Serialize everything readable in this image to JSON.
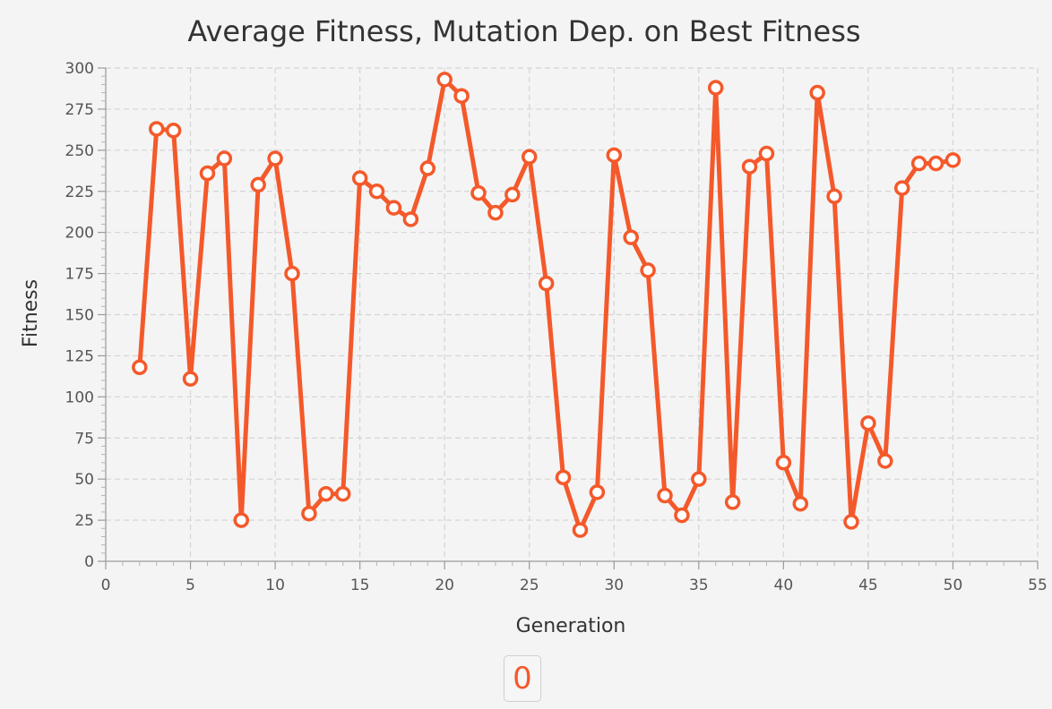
{
  "chart_data": {
    "type": "line",
    "title": "Average Fitness, Mutation Dep. on Best Fitness",
    "xlabel": "Generation",
    "ylabel": "Fitness",
    "xlim": [
      0,
      55
    ],
    "ylim": [
      0,
      300
    ],
    "x_major_ticks": [
      0,
      5,
      10,
      15,
      20,
      25,
      30,
      35,
      40,
      45,
      50,
      55
    ],
    "x_tick_labels": [
      "0",
      "5",
      "10",
      "15",
      "20",
      "25",
      "30",
      "35",
      "40",
      "45",
      "50",
      "55"
    ],
    "y_major_ticks": [
      0,
      25,
      50,
      75,
      100,
      125,
      150,
      175,
      200,
      225,
      250,
      275,
      300
    ],
    "y_tick_labels": [
      "0",
      "25",
      "50",
      "75",
      "100",
      "125",
      "150",
      "175",
      "200",
      "225",
      "250",
      "275",
      "300"
    ],
    "grid": true,
    "legend_position": "bottom-center",
    "series": [
      {
        "name": "0",
        "color": "#f4592b",
        "x": [
          2,
          3,
          4,
          5,
          6,
          7,
          8,
          9,
          10,
          11,
          12,
          13,
          14,
          15,
          16,
          17,
          18,
          19,
          20,
          21,
          22,
          23,
          24,
          25,
          26,
          27,
          28,
          29,
          30,
          31,
          32,
          33,
          34,
          35,
          36,
          37,
          38,
          39,
          40,
          41,
          42,
          43,
          44,
          45,
          46,
          47,
          48,
          49,
          50
        ],
        "values": [
          118,
          263,
          262,
          111,
          236,
          245,
          25,
          229,
          245,
          175,
          29,
          41,
          41,
          233,
          225,
          215,
          208,
          239,
          293,
          283,
          224,
          212,
          223,
          246,
          169,
          51,
          19,
          42,
          247,
          197,
          177,
          40,
          28,
          50,
          288,
          36,
          240,
          248,
          60,
          35,
          285,
          222,
          24,
          84,
          61,
          227,
          242,
          242,
          244
        ]
      }
    ]
  }
}
